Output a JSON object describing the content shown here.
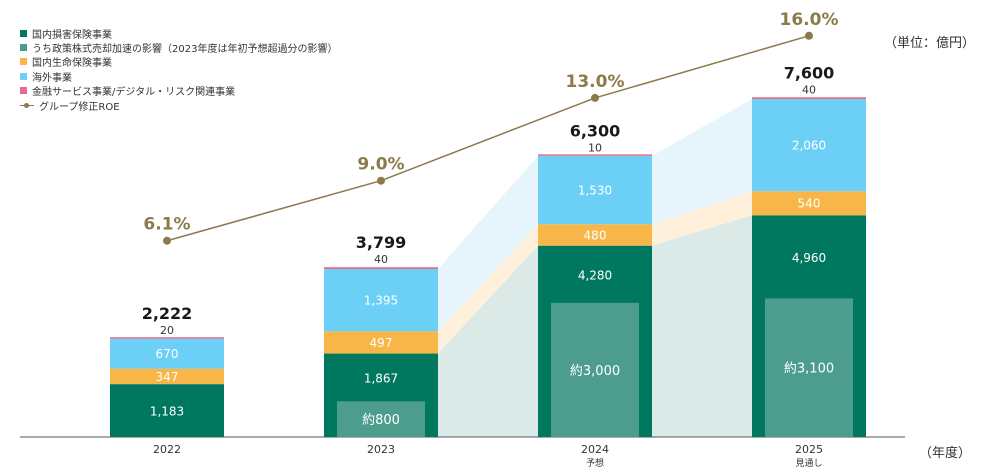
{
  "unit_label": "（単位：億円）",
  "x_unit_label": "（年度）",
  "legend": [
    {
      "label": "国内損害保険事業",
      "color": "#00785f",
      "kind": "box"
    },
    {
      "label": "うち政策株式売却加速の影響（2023年度は年初予想超過分の影響）",
      "color": "#4d9d8e",
      "kind": "box"
    },
    {
      "label": "国内生命保険事業",
      "color": "#f8b648",
      "kind": "box"
    },
    {
      "label": "海外事業",
      "color": "#6ccff6",
      "kind": "box"
    },
    {
      "label": "金融サービス事業/デジタル・リスク関連事業",
      "color": "#e86a8c",
      "kind": "box"
    },
    {
      "label": "グループ修正ROE",
      "color": "#8c7a4a",
      "kind": "line"
    }
  ],
  "chart_data": {
    "type": "bar",
    "stacked": true,
    "categories": [
      "2022",
      "2023",
      "2024",
      "2025"
    ],
    "category_sublabels": [
      "",
      "",
      "予想",
      "見通し"
    ],
    "series": [
      {
        "name": "国内損害保険事業",
        "values": [
          1183,
          1867,
          4280,
          4960
        ],
        "color": "#00785f"
      },
      {
        "name": "国内生命保険事業",
        "values": [
          347,
          497,
          480,
          540
        ],
        "color": "#f8b648"
      },
      {
        "name": "海外事業",
        "values": [
          670,
          1395,
          1530,
          2060
        ],
        "color": "#6ccff6"
      },
      {
        "name": "金融サービス事業/デジタル・リスク関連事業",
        "values": [
          20,
          40,
          10,
          40
        ],
        "color": "#e86a8c"
      }
    ],
    "inner_series": {
      "name": "うち政策株式売却加速の影響（2023年度は年初予想超過分の影響）",
      "values": [
        null,
        800,
        3000,
        3100
      ],
      "labels": [
        "",
        "約800",
        "約3,000",
        "約3,100"
      ],
      "color": "#4d9d8e"
    },
    "value_labels": [
      [
        "1,183",
        "347",
        "670",
        "20"
      ],
      [
        "1,867",
        "497",
        "1,395",
        "40"
      ],
      [
        "4,280",
        "480",
        "1,530",
        "10"
      ],
      [
        "4,960",
        "540",
        "2,060",
        "40"
      ]
    ],
    "totals": [
      2222,
      3799,
      6300,
      7600
    ],
    "total_labels": [
      "2,222",
      "3,799",
      "6,300",
      "7,600"
    ],
    "line": {
      "name": "グループ修正ROE",
      "values": [
        6.1,
        9.0,
        13.0,
        16.0
      ],
      "labels": [
        "6.1%",
        "9.0%",
        "13.0%",
        "16.0%"
      ],
      "color": "#8c7a4a"
    },
    "legend_position": "top-left",
    "grid": false
  }
}
